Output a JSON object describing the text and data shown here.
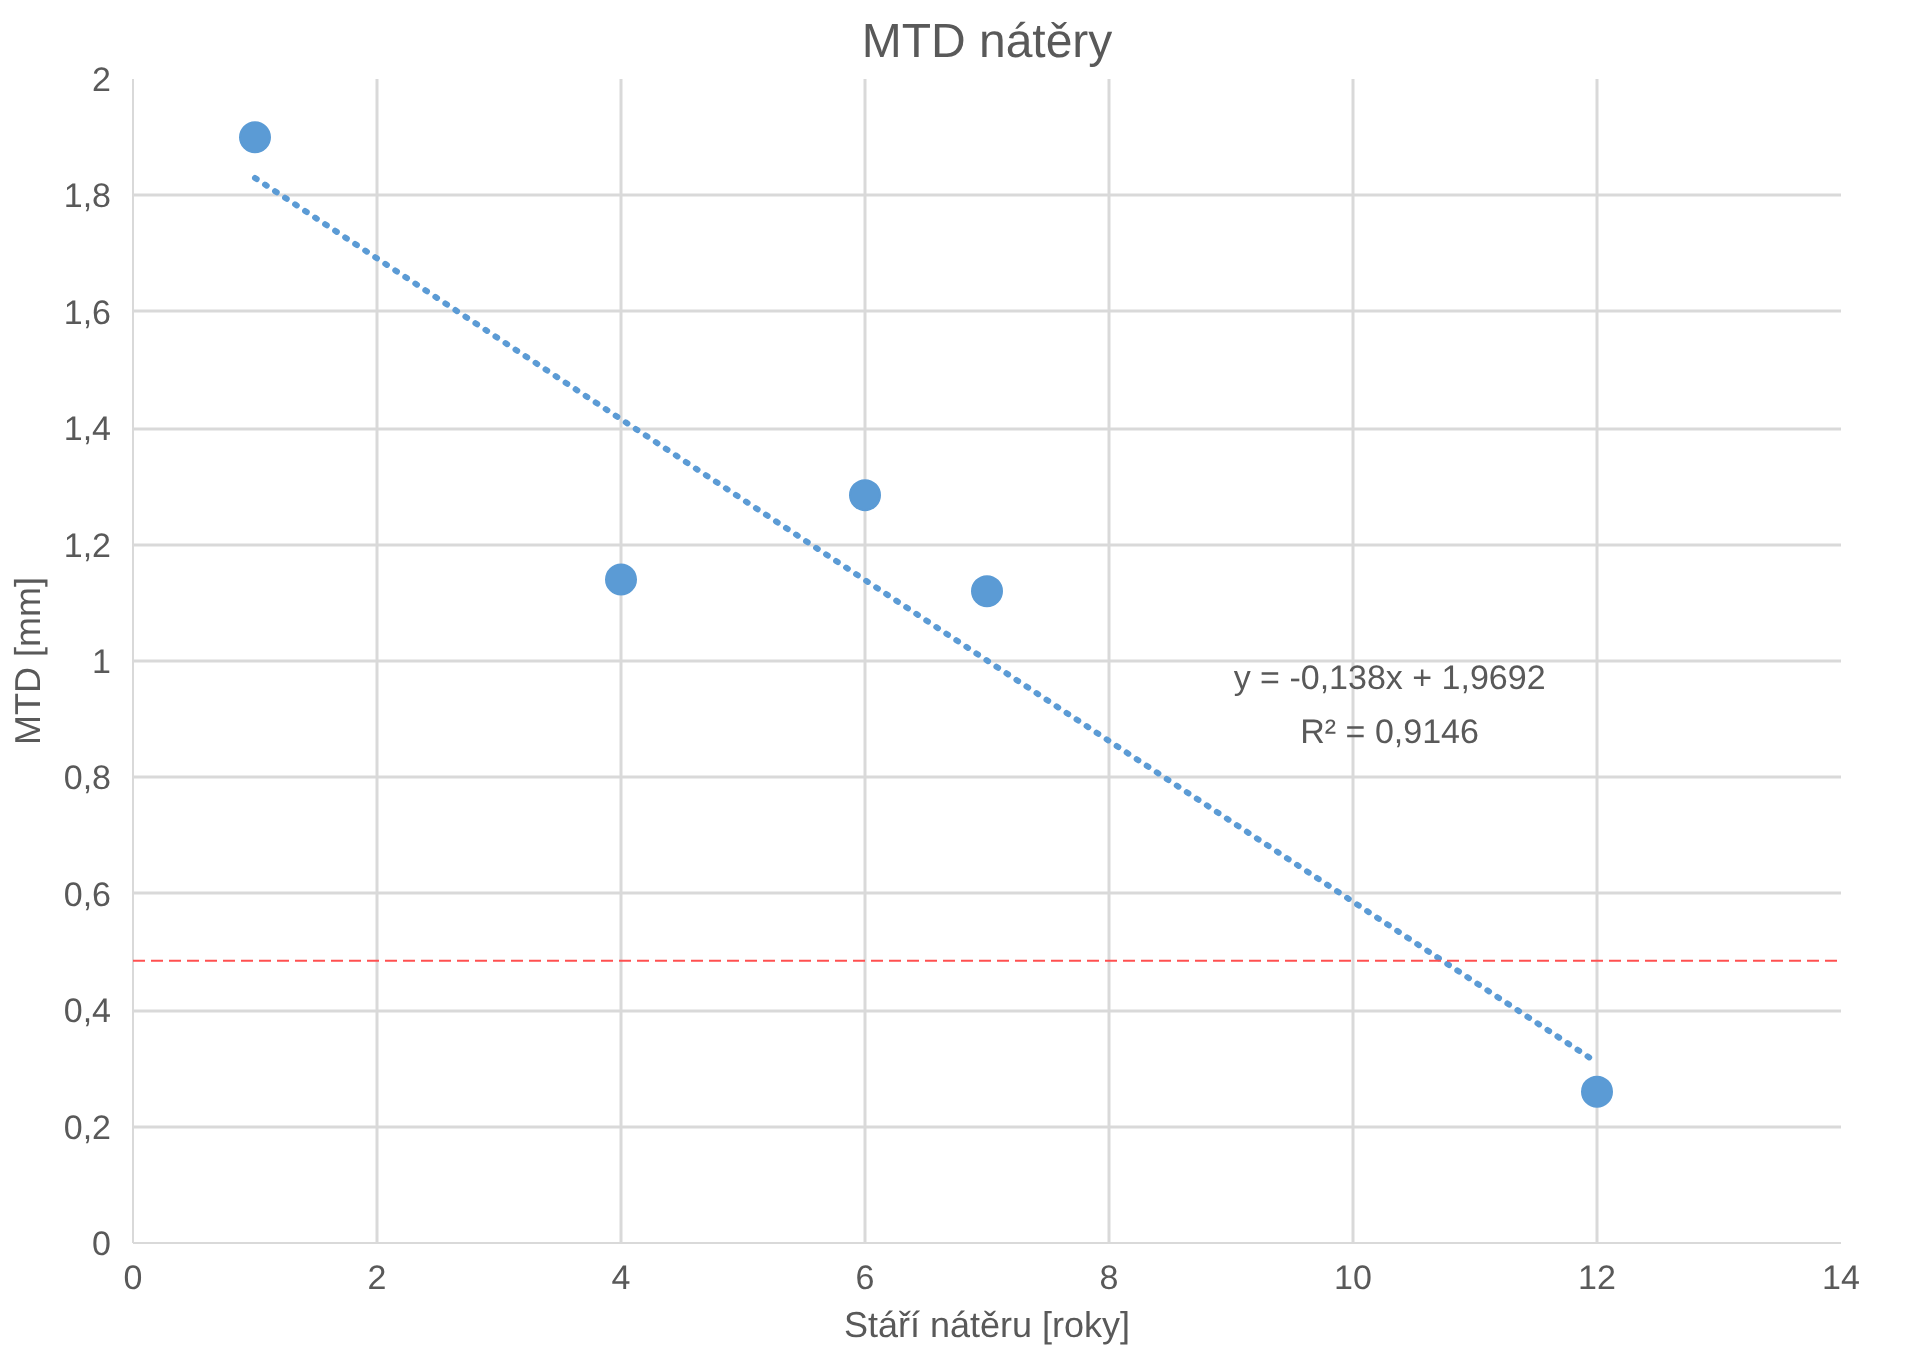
{
  "chart_data": {
    "type": "scatter",
    "title": "MTD nátěry",
    "xlabel": "Stáří nátěru [roky]",
    "ylabel": "MTD [mm]",
    "series": [
      {
        "color": "#5b9bd5",
        "marker": "circle",
        "x": [
          1,
          4,
          6,
          7,
          12
        ],
        "values": [
          1.9,
          1.14,
          1.285,
          1.12,
          0.26
        ]
      },
      {
        "type": "line",
        "color": "#5b9bd5",
        "line_style": "dotted",
        "x": [
          1,
          12
        ],
        "values": [
          1.83,
          0.31
        ]
      }
    ],
    "xlim": [
      0,
      14
    ],
    "xticks": [
      0,
      2,
      4,
      6,
      8,
      10,
      12,
      14
    ],
    "ylim": [
      0,
      2
    ],
    "yticks": [
      0,
      {
        "value": 0.2,
        "label": "0,2"
      },
      {
        "value": 0.4,
        "label": "0,4"
      },
      {
        "value": 0.6,
        "label": "0,6"
      },
      {
        "value": 0.8,
        "label": "0,8"
      },
      1,
      {
        "value": 1.2,
        "label": "1,2"
      },
      {
        "value": 1.4,
        "label": "1,4"
      },
      {
        "value": 1.6,
        "label": "1,6"
      },
      {
        "value": 1.8,
        "label": "1,8"
      },
      2
    ],
    "ref_lines": [
      {
        "axis": "y",
        "value": 0.485,
        "color": "#ff5050",
        "line_style": "dashed"
      }
    ],
    "annotations": [
      "y = -0,138x + 1,9692",
      "R² = 0,9146"
    ],
    "grid": true
  }
}
